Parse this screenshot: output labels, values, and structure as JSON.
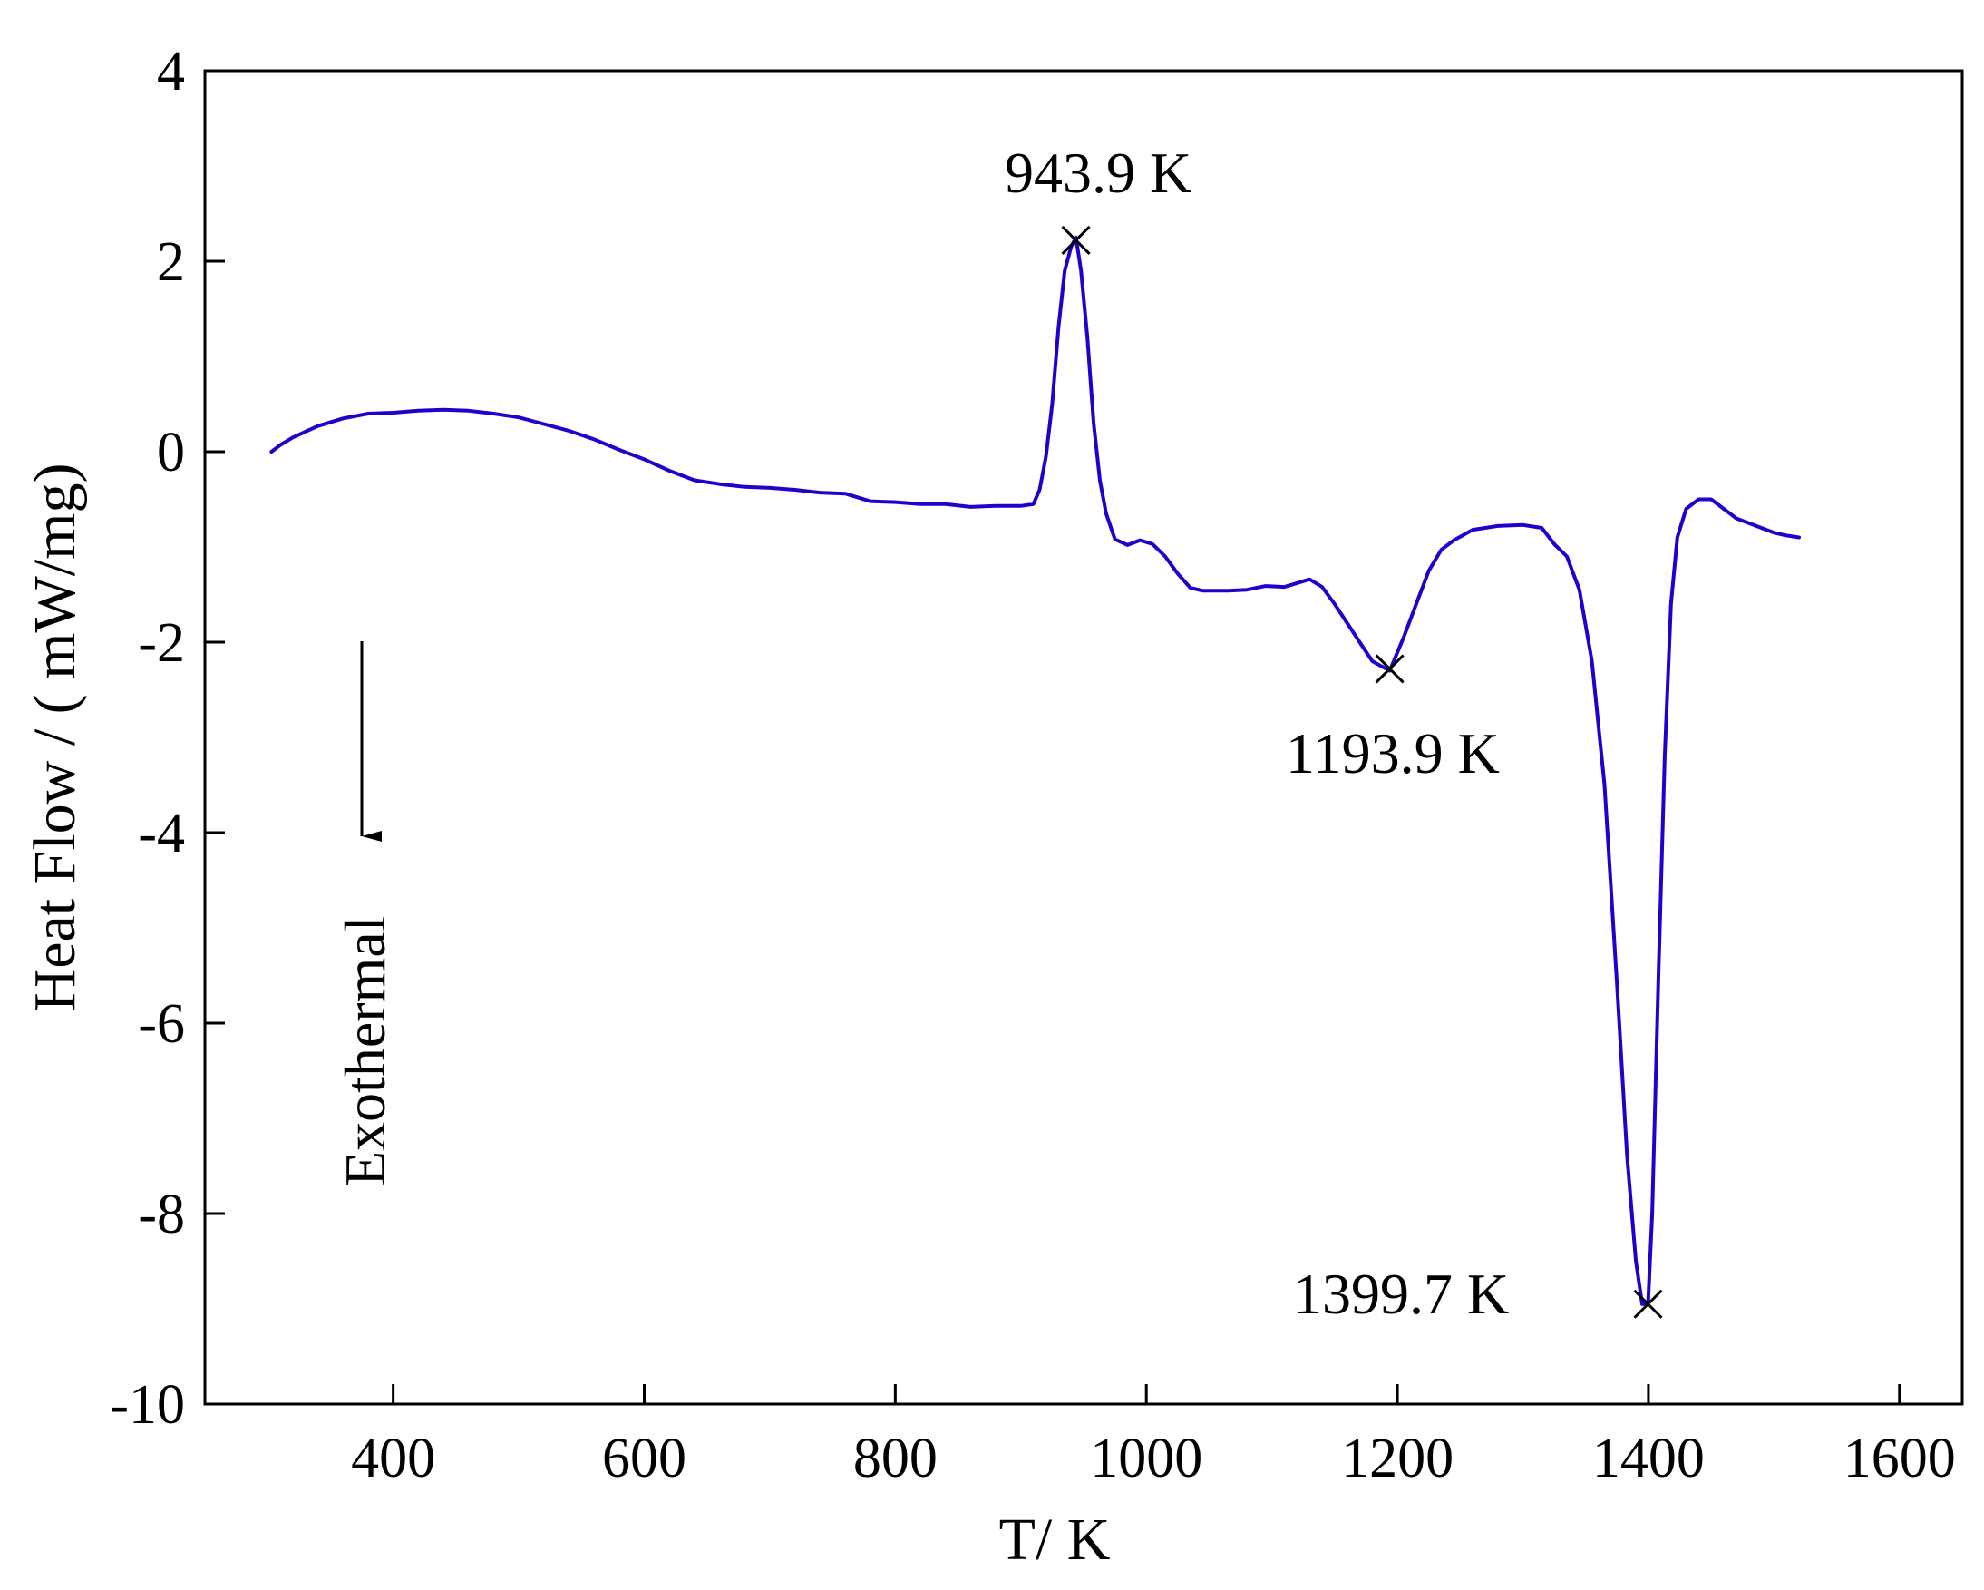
{
  "chart_data": {
    "type": "line",
    "title": "",
    "xlabel": "T/ K",
    "ylabel": "Heat Flow / ( mW/mg)",
    "xlim": [
      250,
      1650
    ],
    "ylim": [
      -10,
      4
    ],
    "xticks": [
      400,
      600,
      800,
      1000,
      1200,
      1400,
      1600
    ],
    "xtick_labels": [
      "400",
      "600",
      "800",
      "1000",
      "1200",
      "1400",
      "1600"
    ],
    "yticks": [
      4,
      2,
      0,
      -2,
      -4,
      -6,
      -8,
      -10
    ],
    "ytick_labels": [
      "4",
      "2",
      "0",
      "-2",
      "-4",
      "-6",
      "-8",
      "-10"
    ],
    "grid": false,
    "line_color": "#2200cc",
    "series": [
      {
        "x": [
          303,
          310,
          320,
          340,
          360,
          380,
          400,
          420,
          440,
          460,
          480,
          500,
          520,
          540,
          560,
          580,
          600,
          620,
          640,
          660,
          680,
          700,
          720,
          740,
          760,
          780,
          800,
          820,
          840,
          860,
          880,
          900,
          910,
          915,
          920,
          925,
          930,
          935,
          940,
          943.9,
          948,
          953,
          958,
          963,
          968,
          975,
          985,
          995,
          1005,
          1015,
          1025,
          1035,
          1045,
          1055,
          1065,
          1080,
          1095,
          1110,
          1120,
          1130,
          1140,
          1150,
          1160,
          1170,
          1180,
          1193.9,
          1205,
          1215,
          1225,
          1235,
          1245,
          1260,
          1280,
          1300,
          1315,
          1325,
          1335,
          1345,
          1355,
          1365,
          1375,
          1383,
          1390,
          1395,
          1399.7,
          1403,
          1408,
          1413,
          1418,
          1423,
          1430,
          1440,
          1450,
          1460,
          1470,
          1480,
          1490,
          1500,
          1510,
          1520
        ],
        "y": [
          0.0,
          0.07,
          0.15,
          0.27,
          0.35,
          0.4,
          0.41,
          0.43,
          0.44,
          0.43,
          0.4,
          0.36,
          0.29,
          0.22,
          0.13,
          0.02,
          -0.08,
          -0.2,
          -0.3,
          -0.34,
          -0.37,
          -0.38,
          -0.4,
          -0.43,
          -0.44,
          -0.52,
          -0.53,
          -0.55,
          -0.55,
          -0.58,
          -0.57,
          -0.57,
          -0.55,
          -0.4,
          -0.05,
          0.5,
          1.3,
          1.9,
          2.15,
          2.25,
          1.9,
          1.2,
          0.3,
          -0.3,
          -0.65,
          -0.92,
          -0.98,
          -0.93,
          -0.97,
          -1.1,
          -1.28,
          -1.43,
          -1.46,
          -1.46,
          -1.46,
          -1.45,
          -1.41,
          -1.42,
          -1.38,
          -1.34,
          -1.42,
          -1.6,
          -1.8,
          -2.0,
          -2.2,
          -2.3,
          -1.95,
          -1.6,
          -1.25,
          -1.03,
          -0.93,
          -0.82,
          -0.78,
          -0.77,
          -0.8,
          -0.97,
          -1.1,
          -1.45,
          -2.2,
          -3.5,
          -5.6,
          -7.4,
          -8.5,
          -8.95,
          -8.95,
          -8.0,
          -5.5,
          -3.2,
          -1.6,
          -0.9,
          -0.6,
          -0.5,
          -0.5,
          -0.6,
          -0.7,
          -0.75,
          -0.8,
          -0.85,
          -0.88,
          -0.9
        ]
      }
    ],
    "markers": [
      {
        "x": 943.9,
        "y": 2.22,
        "symbol": "x",
        "label": "943.9 K"
      },
      {
        "x": 1193.9,
        "y": -2.28,
        "symbol": "x",
        "label": "1193.9 K"
      },
      {
        "x": 1399.7,
        "y": -8.95,
        "symbol": "x",
        "label": "1399.7 K"
      }
    ],
    "annotation_arrow": {
      "text": "Exothermal",
      "direction": "down"
    }
  }
}
